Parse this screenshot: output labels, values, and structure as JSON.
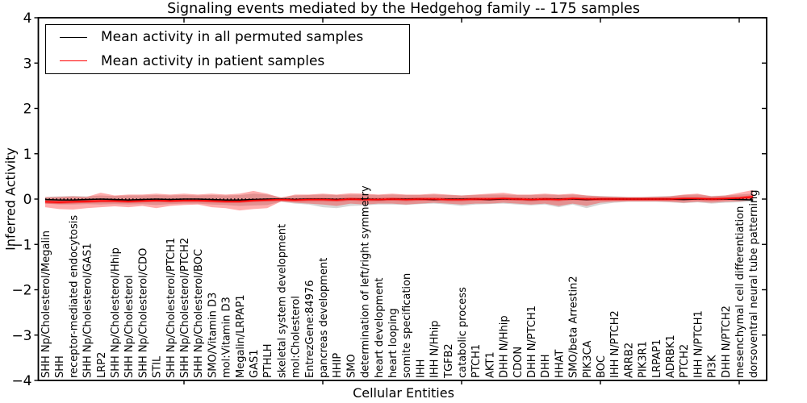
{
  "title": "Signaling events mediated by the Hedgehog family -- 175 samples",
  "axes": {
    "x_label": "Cellular Entities",
    "y_label": "Inferred Activity",
    "y_tick_labels": [
      "4",
      "3",
      "2",
      "1",
      "0",
      "−1",
      "−2",
      "−3",
      "−4"
    ]
  },
  "legend": {
    "items": [
      {
        "label": "Mean activity in all permuted samples",
        "color": "#000000"
      },
      {
        "label": "Mean activity in patient samples",
        "color": "#ff0000"
      }
    ]
  },
  "colors": {
    "axis": "#000000",
    "permuted_line": "#000000",
    "patient_line": "#ff0000",
    "permuted_band": "rgba(120,120,120,0.30)",
    "patient_band": "rgba(255,0,0,0.32)",
    "patient_band_inner": "rgba(255,0,0,0.42)",
    "zero_line": "#000000"
  },
  "chart_data": {
    "type": "line",
    "title": "Signaling events mediated by the Hedgehog family -- 175 samples",
    "xlabel": "Cellular Entities",
    "ylabel": "Inferred Activity",
    "ylim": [
      -4,
      4
    ],
    "yticks": [
      4,
      3,
      2,
      1,
      0,
      -1,
      -2,
      -3,
      -4
    ],
    "x_major_tick_indices": [
      10,
      20,
      30,
      40,
      50
    ],
    "grid": false,
    "legend_position": "upper left",
    "zero_line_style": "dotted",
    "categories": [
      "SHH Np/Cholesterol/Megalin",
      "SHH",
      "receptor-mediated endocytosis",
      "SHH Np/Cholesterol/GAS1",
      "LRP2",
      "SHH Np/Cholesterol/Hhip",
      "SHH Np/Cholesterol",
      "SHH Np/Cholesterol/CDO",
      "STIL",
      "SHH Np/Cholesterol/PTCH1",
      "SHH Np/Cholesterol/PTCH2",
      "SHH Np/Cholesterol/BOC",
      "SMO/Vitamin D3",
      "mol:Vitamin D3",
      "Megalin/LRPAP1",
      "GAS1",
      "PTHLH",
      "skeletal system development",
      "mol:Cholesterol",
      "EntrezGene:84976",
      "pancreas development",
      "HHIP",
      "SMO",
      "determination of left/right symmetry",
      "heart development",
      "heart looping",
      "somite specification",
      "IHH",
      "IHH N/Hhip",
      "TGFB2",
      "catabolic process",
      "PTCH1",
      "AKT1",
      "DHH N/Hhip",
      "CDON",
      "DHH N/PTCH1",
      "DHH",
      "HHAT",
      "SMO/beta Arrestin2",
      "PIK3CA",
      "BOC",
      "IHH N/PTCH2",
      "ARRB2",
      "PIK3R1",
      "LRPAP1",
      "ADRBK1",
      "PTCH2",
      "IHH N/PTCH1",
      "PI3K",
      "DHH N/PTCH2",
      "mesenchymal cell differentiation",
      "dorsoventral neural tube patterning"
    ],
    "series": [
      {
        "name": "Mean activity in all permuted samples",
        "color": "#000000",
        "style": "solid",
        "values": [
          -0.01,
          -0.02,
          -0.02,
          -0.01,
          0,
          -0.01,
          -0.02,
          -0.01,
          0,
          -0.01,
          0,
          0,
          -0.01,
          -0.02,
          -0.02,
          -0.01,
          0,
          0,
          -0.01,
          0,
          0,
          -0.01,
          0,
          0,
          -0.01,
          0,
          0,
          0,
          -0.01,
          0,
          0,
          0,
          -0.01,
          0,
          0,
          -0.01,
          0,
          0,
          0,
          -0.01,
          0,
          0,
          0,
          0,
          0,
          0,
          -0.01,
          0,
          0,
          0,
          -0.01,
          -0.02
        ]
      },
      {
        "name": "Mean activity in patient samples",
        "color": "#ff0000",
        "style": "solid",
        "values": [
          -0.06,
          -0.07,
          -0.06,
          -0.05,
          -0.04,
          -0.04,
          -0.05,
          -0.04,
          -0.03,
          -0.04,
          -0.03,
          -0.03,
          -0.04,
          -0.05,
          -0.05,
          -0.03,
          -0.02,
          -0.01,
          -0.02,
          -0.01,
          -0.01,
          -0.02,
          0,
          -0.01,
          -0.01,
          0,
          -0.01,
          0,
          0,
          -0.01,
          -0.01,
          0,
          0,
          0.01,
          0,
          -0.01,
          0,
          -0.01,
          0.01,
          0,
          0,
          0,
          0,
          0,
          0,
          0,
          0.01,
          0.01,
          0,
          0.01,
          0.02,
          0.05
        ]
      }
    ],
    "bands": [
      {
        "name": "permuted-range",
        "color_key": "permuted_band",
        "upper": [
          0.05,
          0.06,
          0.07,
          0.06,
          0.08,
          0.07,
          0.08,
          0.08,
          0.09,
          0.08,
          0.09,
          0.08,
          0.09,
          0.08,
          0.09,
          0.12,
          0.1,
          0.04,
          0.08,
          0.09,
          0.1,
          0.09,
          0.1,
          0.1,
          0.09,
          0.1,
          0.09,
          0.09,
          0.1,
          0.09,
          0.08,
          0.09,
          0.1,
          0.1,
          0.09,
          0.09,
          0.1,
          0.09,
          0.1,
          0.08,
          0.07,
          0.06,
          0.05,
          0.05,
          0.06,
          0.07,
          0.09,
          0.1,
          0.07,
          0.08,
          0.1,
          0.12
        ],
        "lower": [
          -0.1,
          -0.12,
          -0.12,
          -0.11,
          -0.12,
          -0.11,
          -0.12,
          -0.11,
          -0.13,
          -0.11,
          -0.1,
          -0.1,
          -0.12,
          -0.13,
          -0.15,
          -0.14,
          -0.13,
          -0.06,
          -0.1,
          -0.12,
          -0.18,
          -0.2,
          -0.15,
          -0.14,
          -0.12,
          -0.12,
          -0.13,
          -0.11,
          -0.1,
          -0.12,
          -0.15,
          -0.12,
          -0.11,
          -0.1,
          -0.12,
          -0.14,
          -0.12,
          -0.18,
          -0.12,
          -0.2,
          -0.12,
          -0.08,
          -0.06,
          -0.06,
          -0.06,
          -0.07,
          -0.09,
          -0.07,
          -0.1,
          -0.08,
          -0.07,
          -0.05
        ]
      },
      {
        "name": "patient-range",
        "color_key": "patient_band",
        "upper": [
          0.04,
          0.05,
          0.06,
          0.05,
          0.14,
          0.08,
          0.1,
          0.1,
          0.12,
          0.1,
          0.12,
          0.1,
          0.12,
          0.1,
          0.12,
          0.18,
          0.12,
          0.03,
          0.1,
          0.1,
          0.12,
          0.1,
          0.13,
          0.12,
          0.1,
          0.12,
          0.1,
          0.1,
          0.12,
          0.1,
          0.08,
          0.1,
          0.12,
          0.14,
          0.1,
          0.1,
          0.12,
          0.1,
          0.12,
          0.08,
          0.06,
          0.05,
          0.04,
          0.04,
          0.05,
          0.06,
          0.1,
          0.12,
          0.06,
          0.08,
          0.14,
          0.2
        ],
        "lower": [
          -0.18,
          -0.22,
          -0.23,
          -0.2,
          -0.18,
          -0.16,
          -0.18,
          -0.15,
          -0.2,
          -0.15,
          -0.13,
          -0.12,
          -0.18,
          -0.2,
          -0.25,
          -0.22,
          -0.2,
          -0.05,
          -0.08,
          -0.1,
          -0.12,
          -0.15,
          -0.1,
          -0.12,
          -0.1,
          -0.1,
          -0.12,
          -0.1,
          -0.08,
          -0.1,
          -0.12,
          -0.1,
          -0.1,
          -0.08,
          -0.1,
          -0.12,
          -0.1,
          -0.15,
          -0.1,
          -0.15,
          -0.08,
          -0.06,
          -0.05,
          -0.05,
          -0.05,
          -0.06,
          -0.08,
          -0.06,
          -0.08,
          -0.06,
          -0.05,
          -0.02
        ]
      },
      {
        "name": "patient-inner-range",
        "color_key": "patient_band_inner",
        "around_series": "Mean activity in patient samples",
        "halfwidth": 0.035
      }
    ]
  }
}
